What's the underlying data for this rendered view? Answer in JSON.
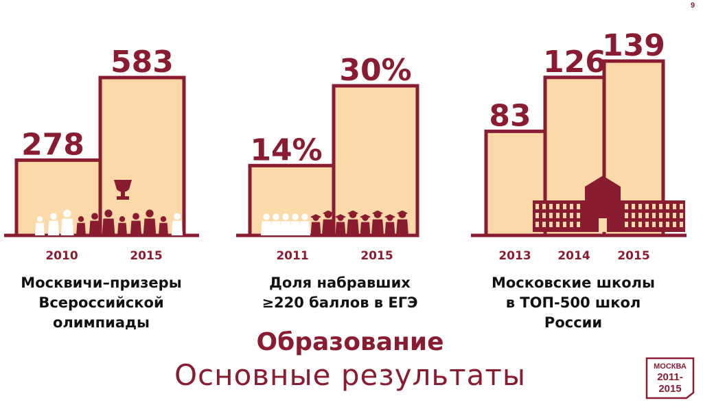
{
  "page_number": "9",
  "title": "Образование",
  "subtitle": "Основные  результаты",
  "badge": {
    "line1": "МОСКВА",
    "line2": "2011-",
    "line3": "2015"
  },
  "colors": {
    "accent": "#8a1c32",
    "fill": "#fcd9a8",
    "text": "#111111"
  },
  "chart_data": [
    {
      "type": "bar",
      "categories": [
        "2010",
        "2015"
      ],
      "values": [
        278,
        583
      ],
      "value_labels": [
        "278",
        "583"
      ],
      "caption": [
        "Москвичи–призеры",
        "Всероссийской",
        "олимпиады"
      ],
      "ylim": [
        0,
        583
      ],
      "icon": "trophy-crowd-icon"
    },
    {
      "type": "bar",
      "categories": [
        "2011",
        "2015"
      ],
      "values": [
        14,
        30
      ],
      "value_labels": [
        "14%",
        "30%"
      ],
      "caption": [
        "Доля набравших",
        "≥220 баллов в ЕГЭ"
      ],
      "ylim": [
        0,
        30
      ],
      "icon": "graduates-icon"
    },
    {
      "type": "bar",
      "categories": [
        "2013",
        "2014",
        "2015"
      ],
      "values": [
        83,
        126,
        139
      ],
      "value_labels": [
        "83",
        "126",
        "139"
      ],
      "caption": [
        "Московские школы",
        "в ТОП-500 школ",
        "России"
      ],
      "ylim": [
        0,
        139
      ],
      "icon": "school-building-icon"
    }
  ]
}
